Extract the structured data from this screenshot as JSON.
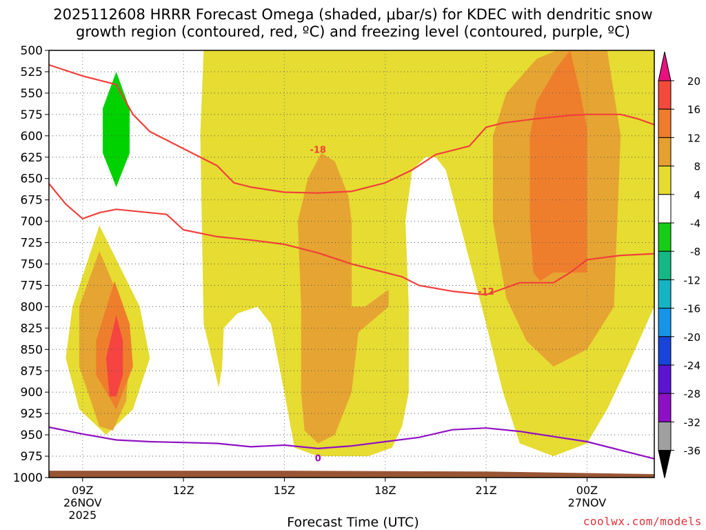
{
  "chart_data": {
    "type": "time-height cross section",
    "title_line1": "2025112608 HRRR Forecast Omega (shaded, μbar/s) for KDEC with dendritic snow",
    "title_line2": "growth region (contoured, red, ºC) and freezing level (contoured, purple, ºC)",
    "xlabel": "Forecast Time (UTC)",
    "credit": "coolwx.com/models",
    "ylabel_units": "hPa",
    "yticks": [
      500,
      525,
      550,
      575,
      600,
      625,
      650,
      675,
      700,
      725,
      750,
      775,
      800,
      825,
      850,
      875,
      900,
      925,
      950,
      975,
      1000
    ],
    "xticks": [
      {
        "h": 9,
        "label": "09Z",
        "sub": [
          "26NOV",
          "2025"
        ]
      },
      {
        "h": 12,
        "label": "12Z",
        "sub": []
      },
      {
        "h": 15,
        "label": "15Z",
        "sub": []
      },
      {
        "h": 18,
        "label": "18Z",
        "sub": []
      },
      {
        "h": 21,
        "label": "21Z",
        "sub": []
      },
      {
        "h": 24,
        "label": "00Z",
        "sub": [
          "27NOV"
        ]
      }
    ],
    "xlim_hours": [
      8,
      26
    ],
    "ylim_hpa": [
      500,
      1000
    ],
    "colorbar": {
      "labels": [
        "20",
        "16",
        "12",
        "8",
        "4",
        "-4",
        "-8",
        "-12",
        "-16",
        "-20",
        "-24",
        "-28",
        "-32",
        "-36"
      ],
      "colors": [
        "#e8107c",
        "#f34a3c",
        "#ef7c2c",
        "#e6a030",
        "#e6dc30",
        "#ffffff",
        "#17cc17",
        "#15b885",
        "#15b4c4",
        "#1694e6",
        "#1745da",
        "#5c14d4",
        "#8e10c4",
        "#a0a0a0",
        "#000000"
      ]
    },
    "omega_shading": [
      {
        "level": "4 to 8",
        "color": "#e6dc32",
        "regions": [
          {
            "name": "main-band",
            "points": [
              [
                12.6,
                500
              ],
              [
                26,
                500
              ],
              [
                26,
                800
              ],
              [
                25.2,
                870
              ],
              [
                24.6,
                920
              ],
              [
                24,
                960
              ],
              [
                23,
                975
              ],
              [
                22,
                960
              ],
              [
                21.5,
                900
              ],
              [
                21,
                820
              ],
              [
                20.2,
                700
              ],
              [
                19.8,
                640
              ],
              [
                19.5,
                625
              ],
              [
                19.2,
                625
              ],
              [
                18.8,
                640
              ],
              [
                18.6,
                700
              ],
              [
                18.7,
                800
              ],
              [
                18.7,
                900
              ],
              [
                18.5,
                940
              ],
              [
                18.2,
                965
              ],
              [
                17.5,
                975
              ],
              [
                16,
                975
              ],
              [
                15.3,
                965
              ],
              [
                15,
                900
              ],
              [
                14.6,
                820
              ],
              [
                14.2,
                800
              ],
              [
                13.6,
                808
              ],
              [
                13.2,
                825
              ],
              [
                13.15,
                870
              ],
              [
                13.05,
                895
              ],
              [
                12.9,
                870
              ],
              [
                12.6,
                820
              ],
              [
                12.5,
                600
              ]
            ]
          },
          {
            "name": "left-blob",
            "points": [
              [
                9.5,
                705
              ],
              [
                8.7,
                800
              ],
              [
                8.5,
                860
              ],
              [
                8.9,
                920
              ],
              [
                9.7,
                950
              ],
              [
                10.5,
                920
              ],
              [
                11,
                860
              ],
              [
                10.7,
                800
              ]
            ]
          }
        ]
      },
      {
        "level": "8 to 12",
        "color": "#e6a432",
        "regions": [
          {
            "name": "right-8-12",
            "points": [
              [
                23.1,
                500
              ],
              [
                24.6,
                500
              ],
              [
                25,
                600
              ],
              [
                24.9,
                700
              ],
              [
                24.8,
                800
              ],
              [
                24,
                850
              ],
              [
                23,
                870
              ],
              [
                22.2,
                840
              ],
              [
                21.6,
                790
              ],
              [
                21.2,
                700
              ],
              [
                21.2,
                600
              ],
              [
                21.6,
                550
              ],
              [
                22.5,
                510
              ]
            ]
          },
          {
            "name": "middle-8-12",
            "points": [
              [
                16.5,
                630
              ],
              [
                16.9,
                670
              ],
              [
                17,
                700
              ],
              [
                17,
                800
              ],
              [
                17.4,
                800
              ],
              [
                18.1,
                780
              ],
              [
                18.1,
                800
              ],
              [
                17.2,
                830
              ],
              [
                17,
                900
              ],
              [
                16.5,
                950
              ],
              [
                16,
                960
              ],
              [
                15.6,
                945
              ],
              [
                15.5,
                900
              ],
              [
                15.5,
                800
              ],
              [
                15.4,
                700
              ],
              [
                15.7,
                650
              ],
              [
                16.1,
                620
              ]
            ]
          },
          {
            "name": "left-8-12",
            "points": [
              [
                9.5,
                735
              ],
              [
                8.9,
                800
              ],
              [
                8.9,
                870
              ],
              [
                9.5,
                940
              ],
              [
                9.9,
                945
              ],
              [
                10.3,
                910
              ],
              [
                10.4,
                850
              ],
              [
                10.2,
                800
              ]
            ]
          }
        ]
      },
      {
        "level": "12 to 16",
        "color": "#ef7e2c",
        "regions": [
          {
            "name": "right-12-16",
            "points": [
              [
                23.5,
                500
              ],
              [
                23.8,
                550
              ],
              [
                24,
                590
              ],
              [
                24,
                650
              ],
              [
                24,
                700
              ],
              [
                24,
                760
              ],
              [
                23,
                760
              ],
              [
                22.6,
                770
              ],
              [
                22.4,
                760
              ],
              [
                22.3,
                700
              ],
              [
                22.3,
                600
              ],
              [
                22.5,
                560
              ],
              [
                23.1,
                520
              ]
            ]
          },
          {
            "name": "left-12-16",
            "points": [
              [
                9.95,
                770
              ],
              [
                9.4,
                840
              ],
              [
                9.4,
                880
              ],
              [
                10,
                920
              ],
              [
                10.5,
                870
              ],
              [
                10.4,
                820
              ]
            ]
          }
        ]
      },
      {
        "level": "16 to 20",
        "color": "#f64440",
        "regions": [
          {
            "name": "left-16-20",
            "points": [
              [
                10.0,
                810
              ],
              [
                9.7,
                860
              ],
              [
                9.8,
                905
              ],
              [
                10,
                905
              ],
              [
                10.2,
                880
              ],
              [
                10.2,
                840
              ]
            ]
          }
        ]
      },
      {
        "level": "-4 to -8",
        "color": "#00d200",
        "regions": [
          {
            "name": "green-blob",
            "points": [
              [
                10.0,
                525
              ],
              [
                10.4,
                568
              ],
              [
                10.4,
                620
              ],
              [
                10.0,
                660
              ],
              [
                9.6,
                620
              ],
              [
                9.6,
                568
              ]
            ]
          }
        ]
      }
    ],
    "dgz_contours": [
      {
        "label": "-18",
        "label_at": [
          16,
          616
        ],
        "color": "#f0403a",
        "points": [
          [
            8,
            517
          ],
          [
            9,
            530
          ],
          [
            9.5,
            535
          ],
          [
            10,
            540
          ],
          [
            10.5,
            575
          ],
          [
            11,
            595
          ],
          [
            12,
            615
          ],
          [
            13,
            635
          ],
          [
            13.5,
            655
          ],
          [
            14,
            660
          ],
          [
            15,
            666
          ],
          [
            16,
            667
          ],
          [
            17,
            665
          ],
          [
            18,
            655
          ],
          [
            18.8,
            640
          ],
          [
            19.5,
            622
          ],
          [
            20.5,
            612
          ],
          [
            21,
            590
          ],
          [
            21.5,
            585
          ],
          [
            22.5,
            580
          ],
          [
            23,
            578
          ],
          [
            23.5,
            576
          ],
          [
            24,
            575
          ],
          [
            25,
            575
          ],
          [
            25.5,
            580
          ],
          [
            26,
            587
          ]
        ]
      },
      {
        "label": "-12",
        "label_at": [
          21,
          782
        ],
        "color": "#f0403a",
        "points": [
          [
            8,
            656
          ],
          [
            8.5,
            680
          ],
          [
            9,
            697
          ],
          [
            9.5,
            690
          ],
          [
            10,
            686
          ],
          [
            11,
            690
          ],
          [
            11.5,
            692
          ],
          [
            12,
            710
          ],
          [
            13,
            718
          ],
          [
            14,
            722
          ],
          [
            15,
            727
          ],
          [
            16,
            737
          ],
          [
            17,
            750
          ],
          [
            18,
            760
          ],
          [
            18.5,
            765
          ],
          [
            19,
            775
          ],
          [
            20,
            782
          ],
          [
            21,
            786
          ],
          [
            22,
            772
          ],
          [
            22.5,
            772
          ],
          [
            23,
            772
          ],
          [
            23.5,
            760
          ],
          [
            24,
            745
          ],
          [
            25,
            740
          ],
          [
            26,
            738
          ]
        ]
      }
    ],
    "freezing_level": {
      "label": "0",
      "label_at": [
        16,
        977
      ],
      "color": "#9010c4",
      "points": [
        [
          8,
          941
        ],
        [
          9,
          949
        ],
        [
          10,
          956
        ],
        [
          11,
          958
        ],
        [
          12,
          959
        ],
        [
          13,
          960
        ],
        [
          14,
          964
        ],
        [
          15,
          962
        ],
        [
          16,
          966
        ],
        [
          17,
          963
        ],
        [
          18,
          958
        ],
        [
          19,
          953
        ],
        [
          20,
          944
        ],
        [
          21,
          942
        ],
        [
          22,
          946
        ],
        [
          23,
          952
        ],
        [
          24,
          958
        ],
        [
          25,
          968
        ],
        [
          26,
          978
        ]
      ]
    },
    "terrain": {
      "color": "#995533",
      "points": [
        [
          8,
          992
        ],
        [
          15,
          992
        ],
        [
          21,
          993
        ],
        [
          26,
          996
        ],
        [
          26,
          1000
        ],
        [
          8,
          1000
        ]
      ]
    }
  }
}
